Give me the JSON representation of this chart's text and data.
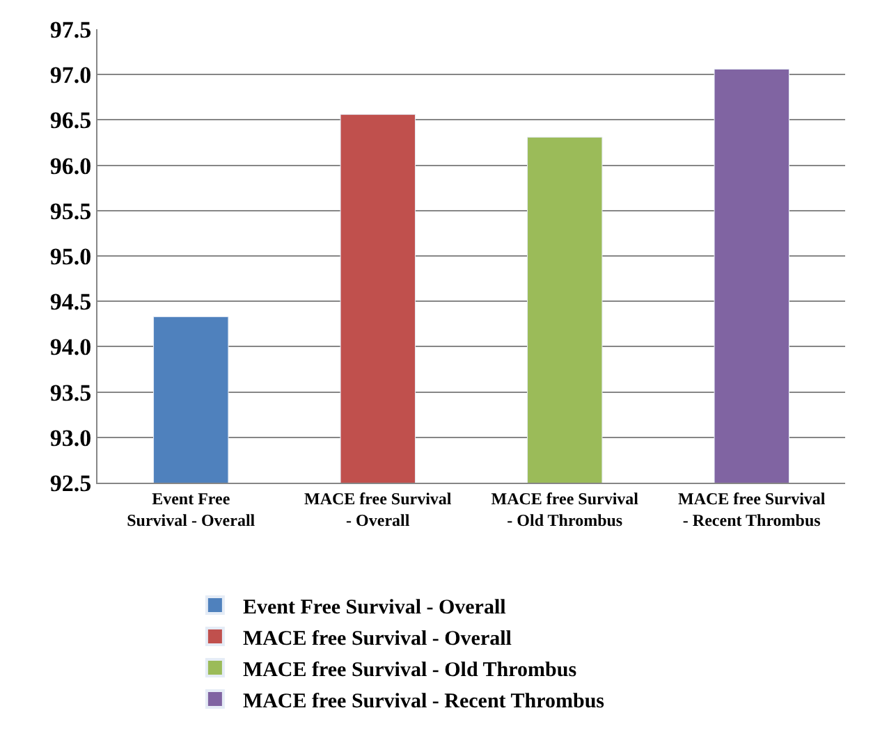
{
  "chart_data": {
    "type": "bar",
    "categories": [
      "Event Free Survival - Overall",
      "MACE free Survival - Overall",
      "MACE free Survival - Old Thrombus",
      "MACE free Survival - Recent Thrombus"
    ],
    "series": [
      {
        "name": "Event Free Survival - Overall",
        "color": "#4f81bd",
        "values": [
          94.33,
          null,
          null,
          null
        ]
      },
      {
        "name": "MACE free Survival - Overall",
        "color": "#c0504d",
        "values": [
          null,
          96.56,
          null,
          null
        ]
      },
      {
        "name": "MACE free Survival - Old Thrombus",
        "color": "#9bbb59",
        "values": [
          null,
          null,
          96.31,
          null
        ]
      },
      {
        "name": "MACE free Survival - Recent Thrombus",
        "color": "#8064a2",
        "values": [
          null,
          null,
          null,
          97.06
        ]
      }
    ],
    "ylim": [
      92.5,
      97.5
    ],
    "yticks": [
      {
        "value": 92.5,
        "label": "92.5"
      },
      {
        "value": 93,
        "label": "93.0"
      },
      {
        "value": 93.5,
        "label": "93.5"
      },
      {
        "value": 94,
        "label": "94.0"
      },
      {
        "value": 94.5,
        "label": "94.5"
      },
      {
        "value": 95,
        "label": "95.0"
      },
      {
        "value": 95.5,
        "label": "95.5"
      },
      {
        "value": 96,
        "label": "96.0"
      },
      {
        "value": 96.5,
        "label": "96.5"
      },
      {
        "value": 97,
        "label": "97.0"
      },
      {
        "value": 97.5,
        "label": "97.5"
      }
    ],
    "grid": "y",
    "legend": "bottom"
  }
}
